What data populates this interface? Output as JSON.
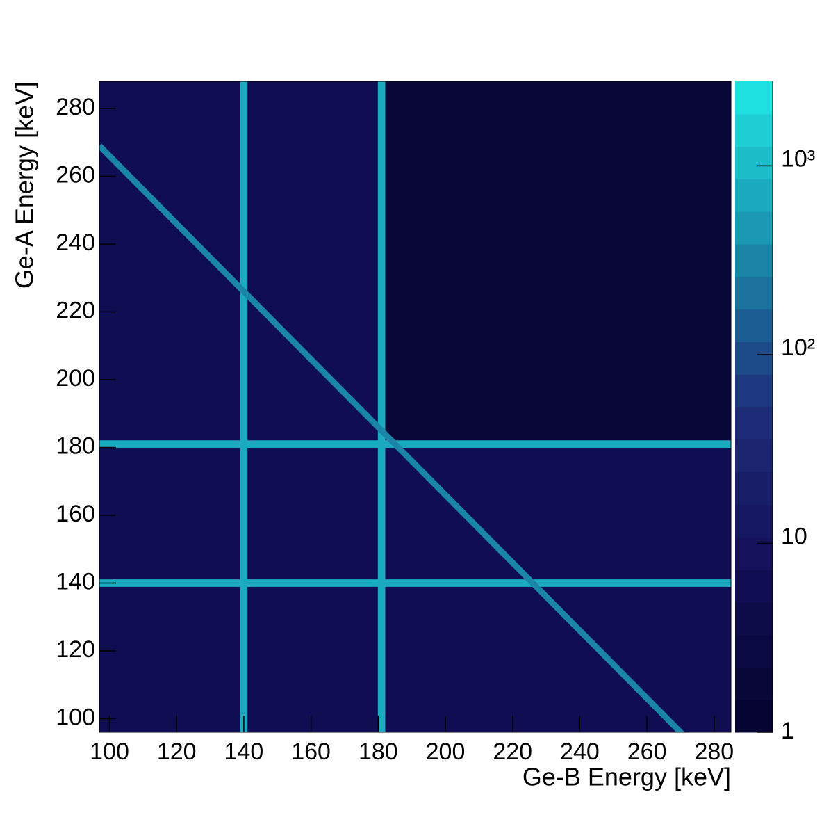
{
  "chart_data": {
    "type": "heatmap",
    "x_label": "Ge-B Energy [keV]",
    "y_label": "Ge-A Energy [keV]",
    "xlim": [
      97,
      285
    ],
    "ylim": [
      96,
      288
    ],
    "xticks": [
      100,
      120,
      140,
      160,
      180,
      200,
      220,
      240,
      260,
      280
    ],
    "yticks": [
      100,
      120,
      140,
      160,
      180,
      200,
      220,
      240,
      260,
      280
    ],
    "color_scale": "log",
    "clim": [
      1,
      2800
    ],
    "cticks": [
      1,
      10,
      {
        "value": 100,
        "label": "10²"
      },
      {
        "value": 1000,
        "label": "10³"
      }
    ],
    "palette": [
      "#050430",
      "#121058",
      "#1f2e7a",
      "#1a8aaa",
      "#1ee0e0"
    ],
    "levels": 20,
    "regions": [
      {
        "x": [
          97,
          181
        ],
        "y": [
          181,
          288
        ],
        "value": 5
      },
      {
        "x": [
          181,
          285
        ],
        "y": [
          181,
          288
        ],
        "value": 2
      },
      {
        "x": [
          97,
          285
        ],
        "y": [
          96,
          181
        ],
        "value": 7
      }
    ],
    "bands": [
      {
        "orientation": "vertical",
        "center": 140,
        "width": 2.2,
        "value": 800
      },
      {
        "orientation": "vertical",
        "center": 181,
        "width": 2.2,
        "value": 800
      },
      {
        "orientation": "horizontal",
        "center": 140,
        "width": 2.2,
        "value": 800
      },
      {
        "orientation": "horizontal",
        "center": 181,
        "width": 2.2,
        "value": 800
      }
    ],
    "diagonal": {
      "sum": 366,
      "width": 1.8,
      "value": 300
    }
  }
}
